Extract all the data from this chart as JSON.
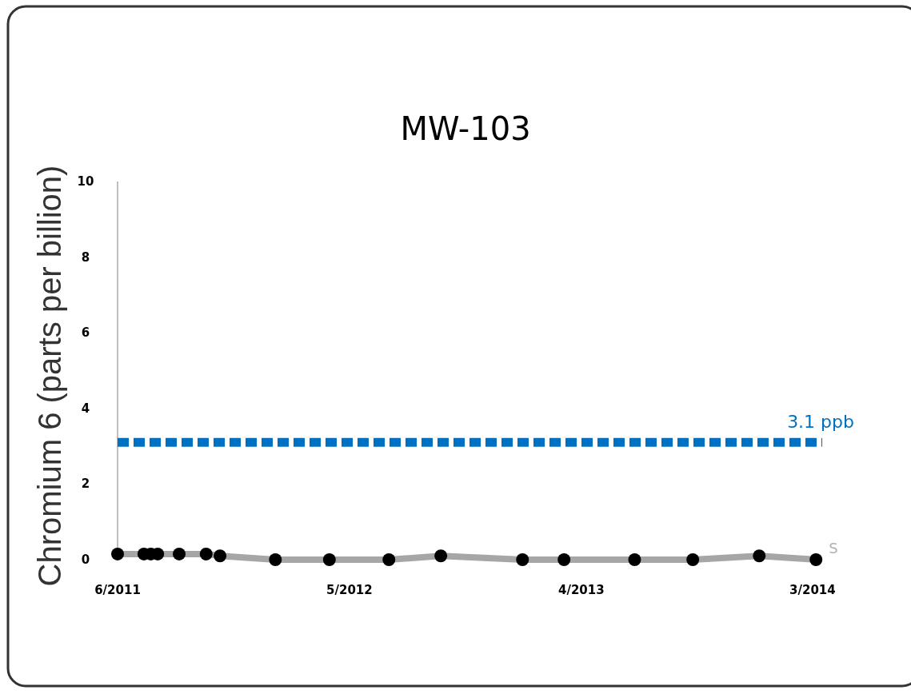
{
  "chart_data": {
    "type": "line",
    "title": "MW-103",
    "ylabel": "Chromium 6 (parts per billion)",
    "x": [
      "2011-06-01",
      "2011-07-09",
      "2011-07-19",
      "2011-07-29",
      "2011-08-29",
      "2011-10-07",
      "2011-10-27",
      "2012-01-15",
      "2012-04-02",
      "2012-06-27",
      "2012-09-10",
      "2013-01-06",
      "2013-03-07",
      "2013-06-17",
      "2013-09-09",
      "2013-12-14",
      "2014-03-06"
    ],
    "series": [
      {
        "name": "S",
        "color": "#a6a6a6",
        "values": [
          0.15,
          0.15,
          0.15,
          0.15,
          0.15,
          0.15,
          0.1,
          0,
          0,
          0,
          0.1,
          0,
          0,
          0,
          0,
          0.1,
          0
        ]
      }
    ],
    "xlim": [
      "2011-06-01",
      "2014-03-15"
    ],
    "xticks": [
      {
        "value": "2011-06-01",
        "label": "6/2011"
      },
      {
        "value": "2012-05-01",
        "label": "5/2012"
      },
      {
        "value": "2013-04-01",
        "label": "4/2013"
      },
      {
        "value": "2014-03-01",
        "label": "3/2014"
      }
    ],
    "ylim": [
      0,
      10
    ],
    "yticks": [
      0,
      2,
      4,
      6,
      8,
      10
    ],
    "ref_lines": [
      {
        "axis": "y",
        "value": 3.1,
        "label": "3.1 ppb",
        "color": "#0070c0",
        "line_style": "dashed"
      }
    ],
    "marker": "circle",
    "grid": false,
    "legend": false
  }
}
